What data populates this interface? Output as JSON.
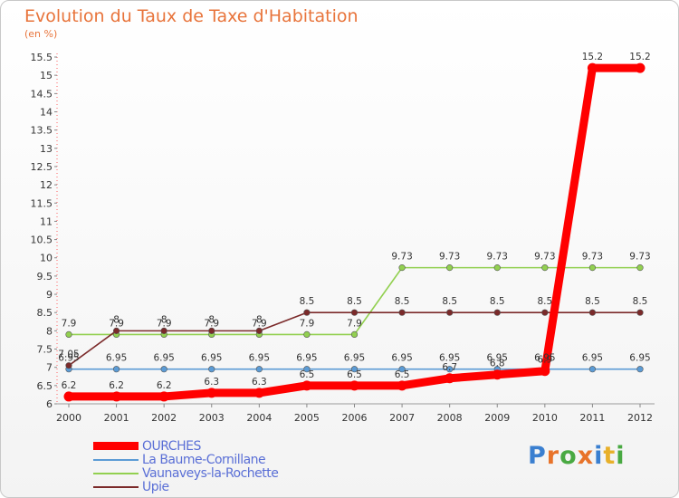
{
  "chart_data": {
    "type": "line",
    "title": "Evolution du Taux de Taxe d'Habitation",
    "subtitle": "(en %)",
    "xlabel": "",
    "ylabel": "",
    "ylim": [
      6,
      15.5
    ],
    "yticks": [
      "6",
      "6.5",
      "7",
      "7.5",
      "8",
      "8.5",
      "9",
      "9.5",
      "10",
      "10.5",
      "11",
      "11.5",
      "12",
      "12.5",
      "13",
      "13.5",
      "14",
      "14.5",
      "15",
      "15.5"
    ],
    "categories": [
      "2000",
      "2001",
      "2002",
      "2003",
      "2004",
      "2005",
      "2006",
      "2007",
      "2008",
      "2009",
      "2010",
      "2011",
      "2012"
    ],
    "grid": false,
    "legend_position": "bottom-left",
    "series": [
      {
        "name": "OURCHES",
        "color": "#ff0000",
        "values": [
          6.2,
          6.2,
          6.2,
          6.3,
          6.3,
          6.5,
          6.5,
          6.5,
          6.7,
          6.8,
          6.9,
          15.2,
          15.2
        ]
      },
      {
        "name": "La Baume-Cornillane",
        "color": "#5b9bd5",
        "values": [
          6.95,
          6.95,
          6.95,
          6.95,
          6.95,
          6.95,
          6.95,
          6.95,
          6.95,
          6.95,
          6.95,
          6.95,
          6.95
        ]
      },
      {
        "name": "Vaunaveys-la-Rochette",
        "color": "#92d050",
        "values": [
          7.9,
          7.9,
          7.9,
          7.9,
          7.9,
          7.9,
          7.9,
          9.73,
          9.73,
          9.73,
          9.73,
          9.73,
          9.73
        ]
      },
      {
        "name": "Upie",
        "color": "#7b2a2a",
        "values": [
          7.05,
          8,
          8,
          8,
          8,
          8.5,
          8.5,
          8.5,
          8.5,
          8.5,
          8.5,
          8.5,
          8.5
        ]
      }
    ]
  },
  "logo": {
    "letters": [
      {
        "ch": "P",
        "color": "#3a7fd0"
      },
      {
        "ch": "r",
        "color": "#e8732a"
      },
      {
        "ch": "o",
        "color": "#49a942"
      },
      {
        "ch": "x",
        "color": "#e8732a"
      },
      {
        "ch": "i",
        "color": "#3a7fd0"
      },
      {
        "ch": "t",
        "color": "#e8b02a"
      },
      {
        "ch": "i",
        "color": "#49a942"
      }
    ]
  }
}
